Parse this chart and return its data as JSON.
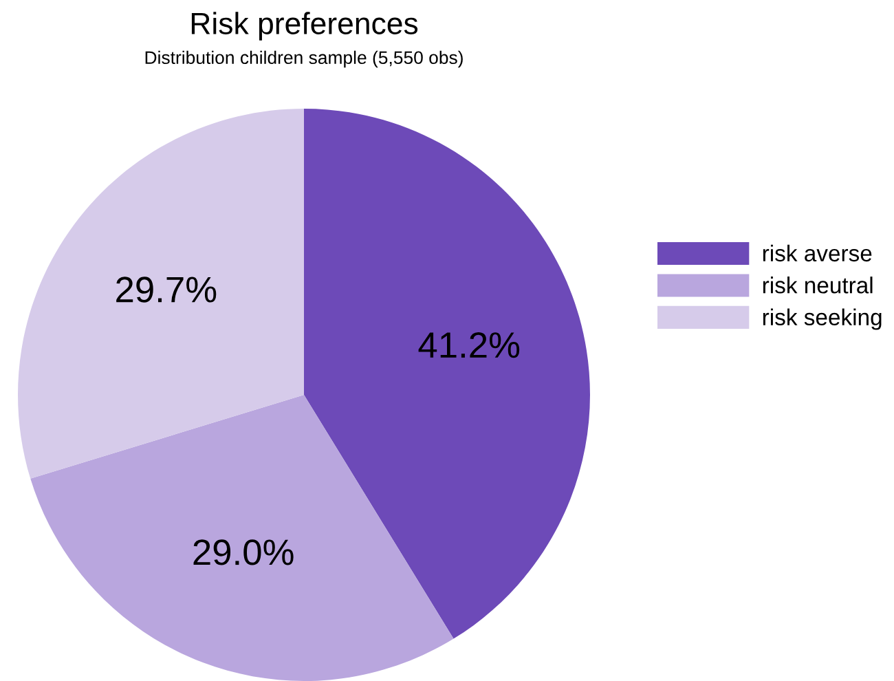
{
  "chart_data": {
    "type": "pie",
    "title": "Risk preferences",
    "subtitle": "Distribution children sample (5,550 obs)",
    "categories": [
      "risk averse",
      "risk neutral",
      "risk seeking"
    ],
    "values": [
      41.2,
      29.0,
      29.7
    ],
    "colors": [
      "#6d4ab8",
      "#b9a6de",
      "#d6cbea"
    ],
    "value_labels": [
      "41.2%",
      "29.0%",
      "29.7%"
    ],
    "legend": "right"
  }
}
